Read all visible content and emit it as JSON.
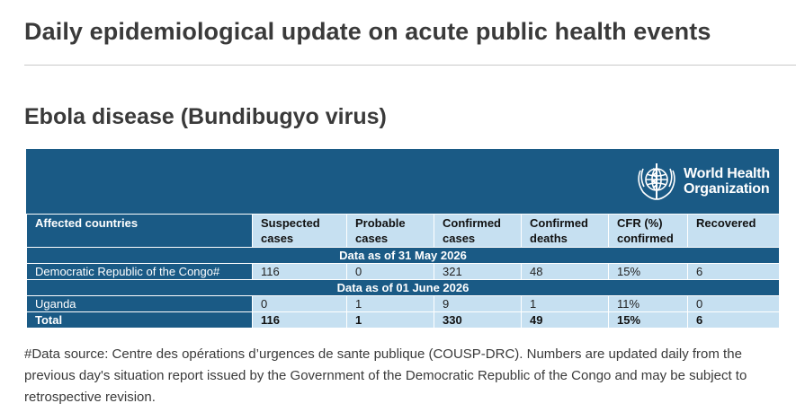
{
  "header": {
    "title": "Daily epidemiological update on acute public health events"
  },
  "section": {
    "title": "Ebola disease (Bundibugyo virus)"
  },
  "logo": {
    "line1": "World Health",
    "line2": "Organization",
    "icon": "who-emblem-icon"
  },
  "table": {
    "columns": [
      "Affected countries",
      "Suspected cases",
      "Probable cases",
      "Confirmed cases",
      "Confirmed deaths",
      "CFR (%) confirmed",
      "Recovered"
    ],
    "column_lines": [
      [
        "Affected countries",
        ""
      ],
      [
        "Suspected",
        "cases"
      ],
      [
        "Probable",
        "cases"
      ],
      [
        "Confirmed",
        "cases"
      ],
      [
        "Confirmed",
        "deaths"
      ],
      [
        "CFR (%)",
        "confirmed"
      ],
      [
        "Recovered",
        ""
      ]
    ],
    "band1": "Data as of 31 May 2026",
    "row1": [
      "Democratic Republic of the Congo#",
      "116",
      "0",
      "321",
      "48",
      "15%",
      "6"
    ],
    "band2": "Data as of 01 June 2026",
    "row2": [
      "Uganda",
      "0",
      "1",
      "9",
      "1",
      "11%",
      "0"
    ],
    "total": [
      "Total",
      "116",
      "1",
      "330",
      "49",
      "15%",
      "6"
    ]
  },
  "footnote": "#Data source: Centre des opérations d’urgences de sante publique (COUSP-DRC). Numbers are updated daily from the previous day's situation report issued by the Government of the Democratic Republic of the Congo and may be subject to retrospective revision.",
  "colors": {
    "banner": "#1a5a85",
    "cell": "#c6e0f1"
  }
}
